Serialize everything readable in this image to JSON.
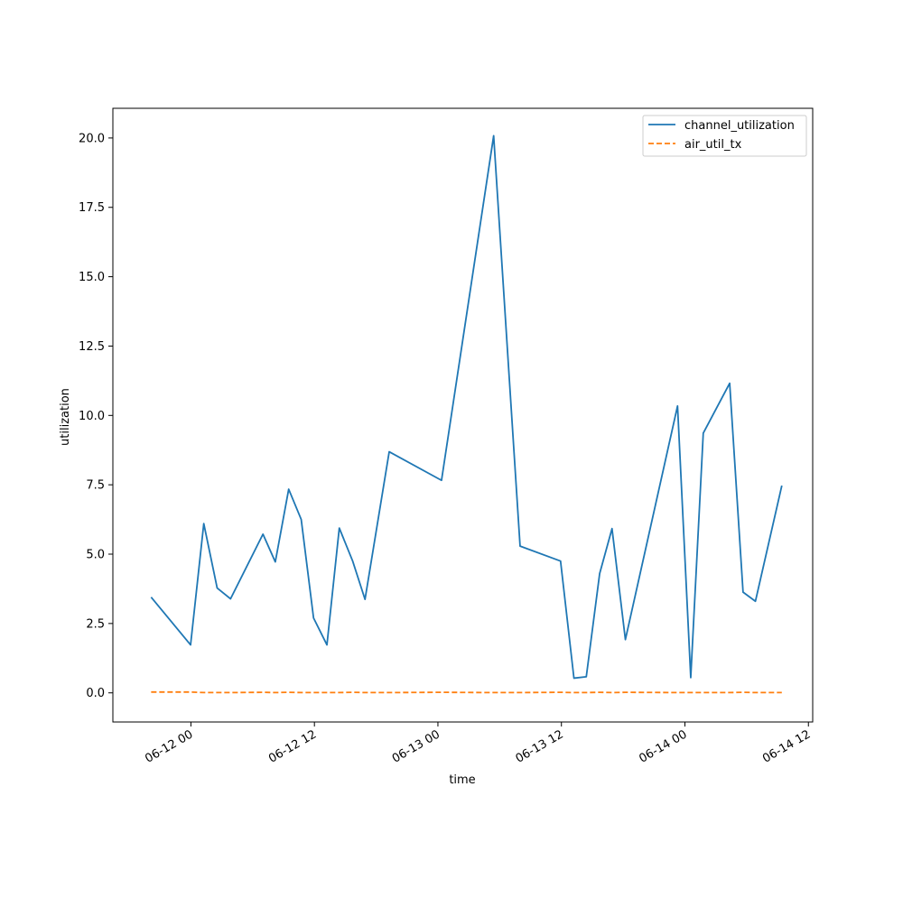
{
  "chart_data": {
    "type": "line",
    "xlabel": "time",
    "ylabel": "utilization",
    "x_axis_type": "datetime",
    "xlim": [
      "2024-06-11 16:25",
      "2024-06-14 12:25"
    ],
    "ylim": [
      -1.05,
      21.07
    ],
    "x_ticks": [
      {
        "value": "2024-06-12 00:00",
        "label": "06-12 00"
      },
      {
        "value": "2024-06-12 12:00",
        "label": "06-12 12"
      },
      {
        "value": "2024-06-13 00:00",
        "label": "06-13 00"
      },
      {
        "value": "2024-06-13 12:00",
        "label": "06-13 12"
      },
      {
        "value": "2024-06-14 00:00",
        "label": "06-14 00"
      },
      {
        "value": "2024-06-14 12:00",
        "label": "06-14 12"
      }
    ],
    "y_ticks": [
      {
        "value": 0.0,
        "label": "0.0"
      },
      {
        "value": 2.5,
        "label": "2.5"
      },
      {
        "value": 5.0,
        "label": "5.0"
      },
      {
        "value": 7.5,
        "label": "7.5"
      },
      {
        "value": 10.0,
        "label": "10.0"
      },
      {
        "value": 12.5,
        "label": "12.5"
      },
      {
        "value": 15.0,
        "label": "15.0"
      },
      {
        "value": 17.5,
        "label": "17.5"
      },
      {
        "value": 20.0,
        "label": "20.0"
      }
    ],
    "grid": false,
    "legend_position": "top-right",
    "series": [
      {
        "name": "channel_utilization",
        "color": "#1f77b4",
        "line_style": "solid",
        "points": [
          {
            "x": "2024-06-11 20:08",
            "y": 3.45
          },
          {
            "x": "2024-06-11 23:58",
            "y": 1.73
          },
          {
            "x": "2024-06-12 01:15",
            "y": 6.1
          },
          {
            "x": "2024-06-12 02:33",
            "y": 3.78
          },
          {
            "x": "2024-06-12 03:51",
            "y": 3.39
          },
          {
            "x": "2024-06-12 07:00",
            "y": 5.72
          },
          {
            "x": "2024-06-12 08:12",
            "y": 4.72
          },
          {
            "x": "2024-06-12 09:30",
            "y": 7.34
          },
          {
            "x": "2024-06-12 10:43",
            "y": 6.25
          },
          {
            "x": "2024-06-12 11:55",
            "y": 2.7
          },
          {
            "x": "2024-06-12 13:13",
            "y": 1.73
          },
          {
            "x": "2024-06-12 14:25",
            "y": 5.94
          },
          {
            "x": "2024-06-12 15:43",
            "y": 4.75
          },
          {
            "x": "2024-06-12 16:55",
            "y": 3.37
          },
          {
            "x": "2024-06-12 19:16",
            "y": 8.69
          },
          {
            "x": "2024-06-13 00:21",
            "y": 7.66
          },
          {
            "x": "2024-06-13 05:25",
            "y": 20.08
          },
          {
            "x": "2024-06-13 07:59",
            "y": 5.29
          },
          {
            "x": "2024-06-13 11:55",
            "y": 4.75
          },
          {
            "x": "2024-06-13 13:13",
            "y": 0.53
          },
          {
            "x": "2024-06-13 14:25",
            "y": 0.58
          },
          {
            "x": "2024-06-13 15:43",
            "y": 4.3
          },
          {
            "x": "2024-06-13 16:55",
            "y": 5.92
          },
          {
            "x": "2024-06-13 18:13",
            "y": 1.92
          },
          {
            "x": "2024-06-13 23:17",
            "y": 10.34
          },
          {
            "x": "2024-06-14 00:34",
            "y": 0.55
          },
          {
            "x": "2024-06-14 01:47",
            "y": 9.36
          },
          {
            "x": "2024-06-14 04:21",
            "y": 11.16
          },
          {
            "x": "2024-06-14 05:39",
            "y": 3.63
          },
          {
            "x": "2024-06-14 06:51",
            "y": 3.3
          },
          {
            "x": "2024-06-14 09:25",
            "y": 7.47
          }
        ]
      },
      {
        "name": "air_util_tx",
        "color": "#ff7f0e",
        "line_style": "dashed",
        "points": [
          {
            "x": "2024-06-11 20:08",
            "y": 0.03
          },
          {
            "x": "2024-06-11 23:58",
            "y": 0.03
          },
          {
            "x": "2024-06-12 01:15",
            "y": 0.01
          },
          {
            "x": "2024-06-12 02:33",
            "y": 0.01
          },
          {
            "x": "2024-06-12 03:51",
            "y": 0.01
          },
          {
            "x": "2024-06-12 07:00",
            "y": 0.02
          },
          {
            "x": "2024-06-12 08:12",
            "y": 0.01
          },
          {
            "x": "2024-06-12 09:30",
            "y": 0.02
          },
          {
            "x": "2024-06-12 10:43",
            "y": 0.01
          },
          {
            "x": "2024-06-12 11:55",
            "y": 0.01
          },
          {
            "x": "2024-06-12 13:13",
            "y": 0.01
          },
          {
            "x": "2024-06-12 14:25",
            "y": 0.01
          },
          {
            "x": "2024-06-12 15:43",
            "y": 0.02
          },
          {
            "x": "2024-06-12 16:55",
            "y": 0.01
          },
          {
            "x": "2024-06-12 19:16",
            "y": 0.01
          },
          {
            "x": "2024-06-13 00:21",
            "y": 0.02
          },
          {
            "x": "2024-06-13 05:25",
            "y": 0.01
          },
          {
            "x": "2024-06-13 07:59",
            "y": 0.01
          },
          {
            "x": "2024-06-13 11:55",
            "y": 0.02
          },
          {
            "x": "2024-06-13 13:13",
            "y": 0.01
          },
          {
            "x": "2024-06-13 14:25",
            "y": 0.01
          },
          {
            "x": "2024-06-13 15:43",
            "y": 0.02
          },
          {
            "x": "2024-06-13 16:55",
            "y": 0.01
          },
          {
            "x": "2024-06-13 18:13",
            "y": 0.02
          },
          {
            "x": "2024-06-13 23:17",
            "y": 0.01
          },
          {
            "x": "2024-06-14 00:34",
            "y": 0.01
          },
          {
            "x": "2024-06-14 01:47",
            "y": 0.01
          },
          {
            "x": "2024-06-14 04:21",
            "y": 0.01
          },
          {
            "x": "2024-06-14 05:39",
            "y": 0.02
          },
          {
            "x": "2024-06-14 06:51",
            "y": 0.01
          },
          {
            "x": "2024-06-14 09:25",
            "y": 0.01
          }
        ]
      }
    ]
  }
}
